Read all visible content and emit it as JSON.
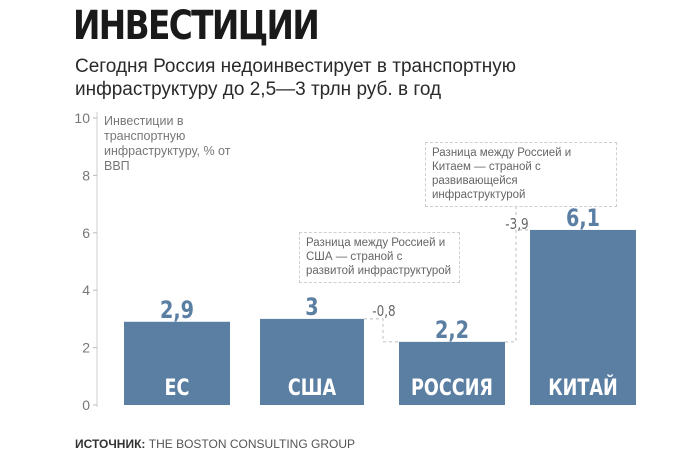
{
  "title": "ИНВЕСТИЦИИ",
  "subtitle": "Сегодня Россия недоинвестирует в транспортную инфраструктуру до 2,5—3 трлн руб. в год",
  "source": {
    "label": "ИСТОЧНИК:",
    "text": " THE BOSTON CONSULTING GROUP"
  },
  "notes": {
    "usa": "Разница между Россией и США — страной с развитой инфраструктурой",
    "china": "Разница между Россией и Китаем — страной с развивающейся инфраструктурой",
    "usa_diff": "-0,8",
    "china_diff": "-3,9"
  },
  "chart_data": {
    "type": "bar",
    "ylabel": "Инвестиции в транспортную инфраструктуру, % от ВВП",
    "ylim": [
      0,
      10
    ],
    "yticks": [
      "0",
      "2",
      "4",
      "6",
      "8",
      "10"
    ],
    "categories": [
      "ЕС",
      "США",
      "РОССИЯ",
      "КИТАЙ"
    ],
    "values": [
      2.9,
      3,
      2.2,
      6.1
    ],
    "value_labels": [
      "2,9",
      "3",
      "2,2",
      "6,1"
    ],
    "bar_color": "#5b7fa3",
    "grid": false
  }
}
